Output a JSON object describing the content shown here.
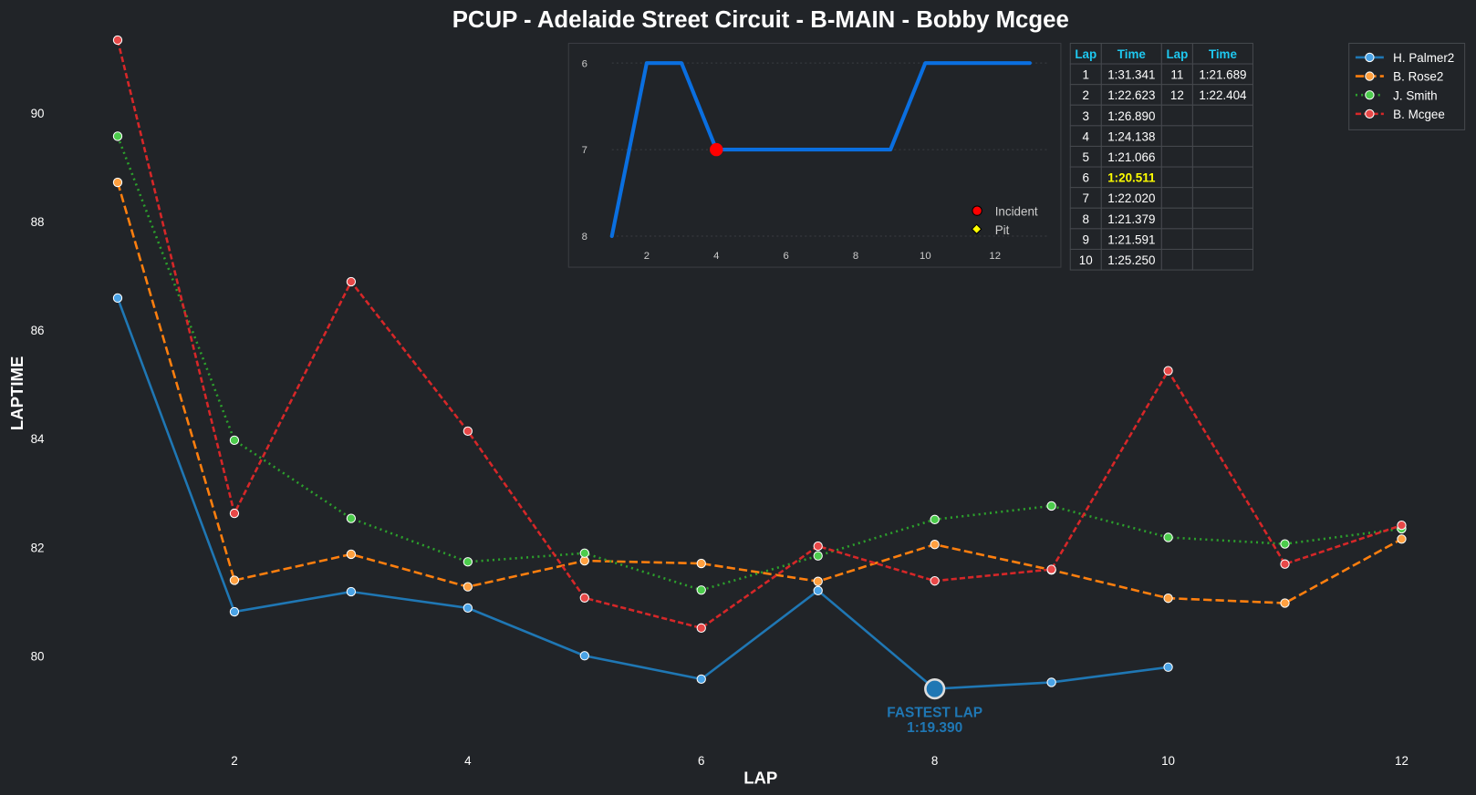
{
  "colors": {
    "background": "#212428",
    "palmer": "#1f77b4",
    "rose": "#ff7f0e",
    "smith": "#2ca02c",
    "mcgee": "#d62728",
    "position_line": "#0a6fe0",
    "table_header": "#1ec8f0",
    "best_lap": "#ffff00",
    "text": "#ffffff"
  },
  "chart_data": [
    {
      "type": "line",
      "title": "PCUP - Adelaide Street Circuit - B-MAIN - Bobby Mcgee",
      "xlabel": "LAP",
      "ylabel": "LAPTIME",
      "xlim": [
        0.8,
        12.57
      ],
      "ylim": [
        78.4,
        91.4
      ],
      "xticks": [
        2,
        4,
        6,
        8,
        10,
        12
      ],
      "yticks": [
        80,
        82,
        84,
        86,
        88,
        90
      ],
      "grid": false,
      "legend_position": "top-right",
      "series": [
        {
          "name": "H. Palmer2",
          "key": "palmer",
          "style": "solid",
          "x": [
            1,
            2,
            3,
            4,
            5,
            6,
            7,
            8,
            9,
            10
          ],
          "values": [
            86.59,
            80.81,
            81.18,
            80.88,
            80.0,
            79.57,
            81.2,
            79.39,
            79.51,
            79.79
          ]
        },
        {
          "name": "B. Rose2",
          "key": "rose",
          "style": "dashed",
          "x": [
            1,
            2,
            3,
            4,
            5,
            6,
            7,
            8,
            9,
            10,
            11,
            12
          ],
          "values": [
            88.72,
            81.39,
            81.87,
            81.27,
            81.75,
            81.7,
            81.37,
            82.05,
            81.58,
            81.06,
            80.97,
            82.15
          ]
        },
        {
          "name": "J. Smith",
          "key": "smith",
          "style": "dotted",
          "x": [
            1,
            2,
            3,
            4,
            5,
            6,
            7,
            8,
            9,
            10,
            11,
            12
          ],
          "values": [
            89.57,
            83.97,
            82.53,
            81.73,
            81.89,
            81.21,
            81.84,
            82.51,
            82.76,
            82.18,
            82.06,
            82.34
          ]
        },
        {
          "name": "B. Mcgee",
          "key": "mcgee",
          "style": "dashdot",
          "x": [
            1,
            2,
            3,
            4,
            5,
            6,
            7,
            8,
            9,
            10,
            11,
            12
          ],
          "values": [
            91.341,
            82.623,
            86.89,
            84.138,
            81.066,
            80.511,
            82.02,
            81.379,
            81.591,
            85.25,
            81.689,
            82.404
          ]
        }
      ],
      "annotation": {
        "label": "FASTEST LAP",
        "value": "1:19.390",
        "x": 8,
        "y": 79.39
      }
    },
    {
      "type": "line",
      "title": "Position",
      "xticks": [
        2,
        4,
        6,
        8,
        10,
        12
      ],
      "yticks": [
        6,
        7,
        8
      ],
      "ylim": [
        8,
        6
      ],
      "x": [
        1,
        2,
        3,
        4,
        5,
        6,
        7,
        8,
        9,
        10,
        11,
        12,
        13
      ],
      "values": [
        8,
        6,
        6,
        7,
        7,
        7,
        7,
        7,
        7,
        6,
        6,
        6,
        6
      ],
      "incidents": [
        {
          "x": 4,
          "y": 7
        }
      ],
      "pits": [],
      "legend": [
        "Incident",
        "Pit"
      ],
      "legend_position": "bottom-right"
    },
    {
      "type": "table",
      "headers": [
        "Lap",
        "Time",
        "Lap",
        "Time"
      ],
      "rows": [
        [
          "1",
          "1:31.341",
          "11",
          "1:21.689"
        ],
        [
          "2",
          "1:22.623",
          "12",
          "1:22.404"
        ],
        [
          "3",
          "1:26.890",
          "",
          ""
        ],
        [
          "4",
          "1:24.138",
          "",
          ""
        ],
        [
          "5",
          "1:21.066",
          "",
          ""
        ],
        [
          "6",
          "1:20.511",
          "",
          ""
        ],
        [
          "7",
          "1:22.020",
          "",
          ""
        ],
        [
          "8",
          "1:21.379",
          "",
          ""
        ],
        [
          "9",
          "1:21.591",
          "",
          ""
        ],
        [
          "10",
          "1:25.250",
          "",
          ""
        ]
      ],
      "best_lap_row": 5
    }
  ]
}
